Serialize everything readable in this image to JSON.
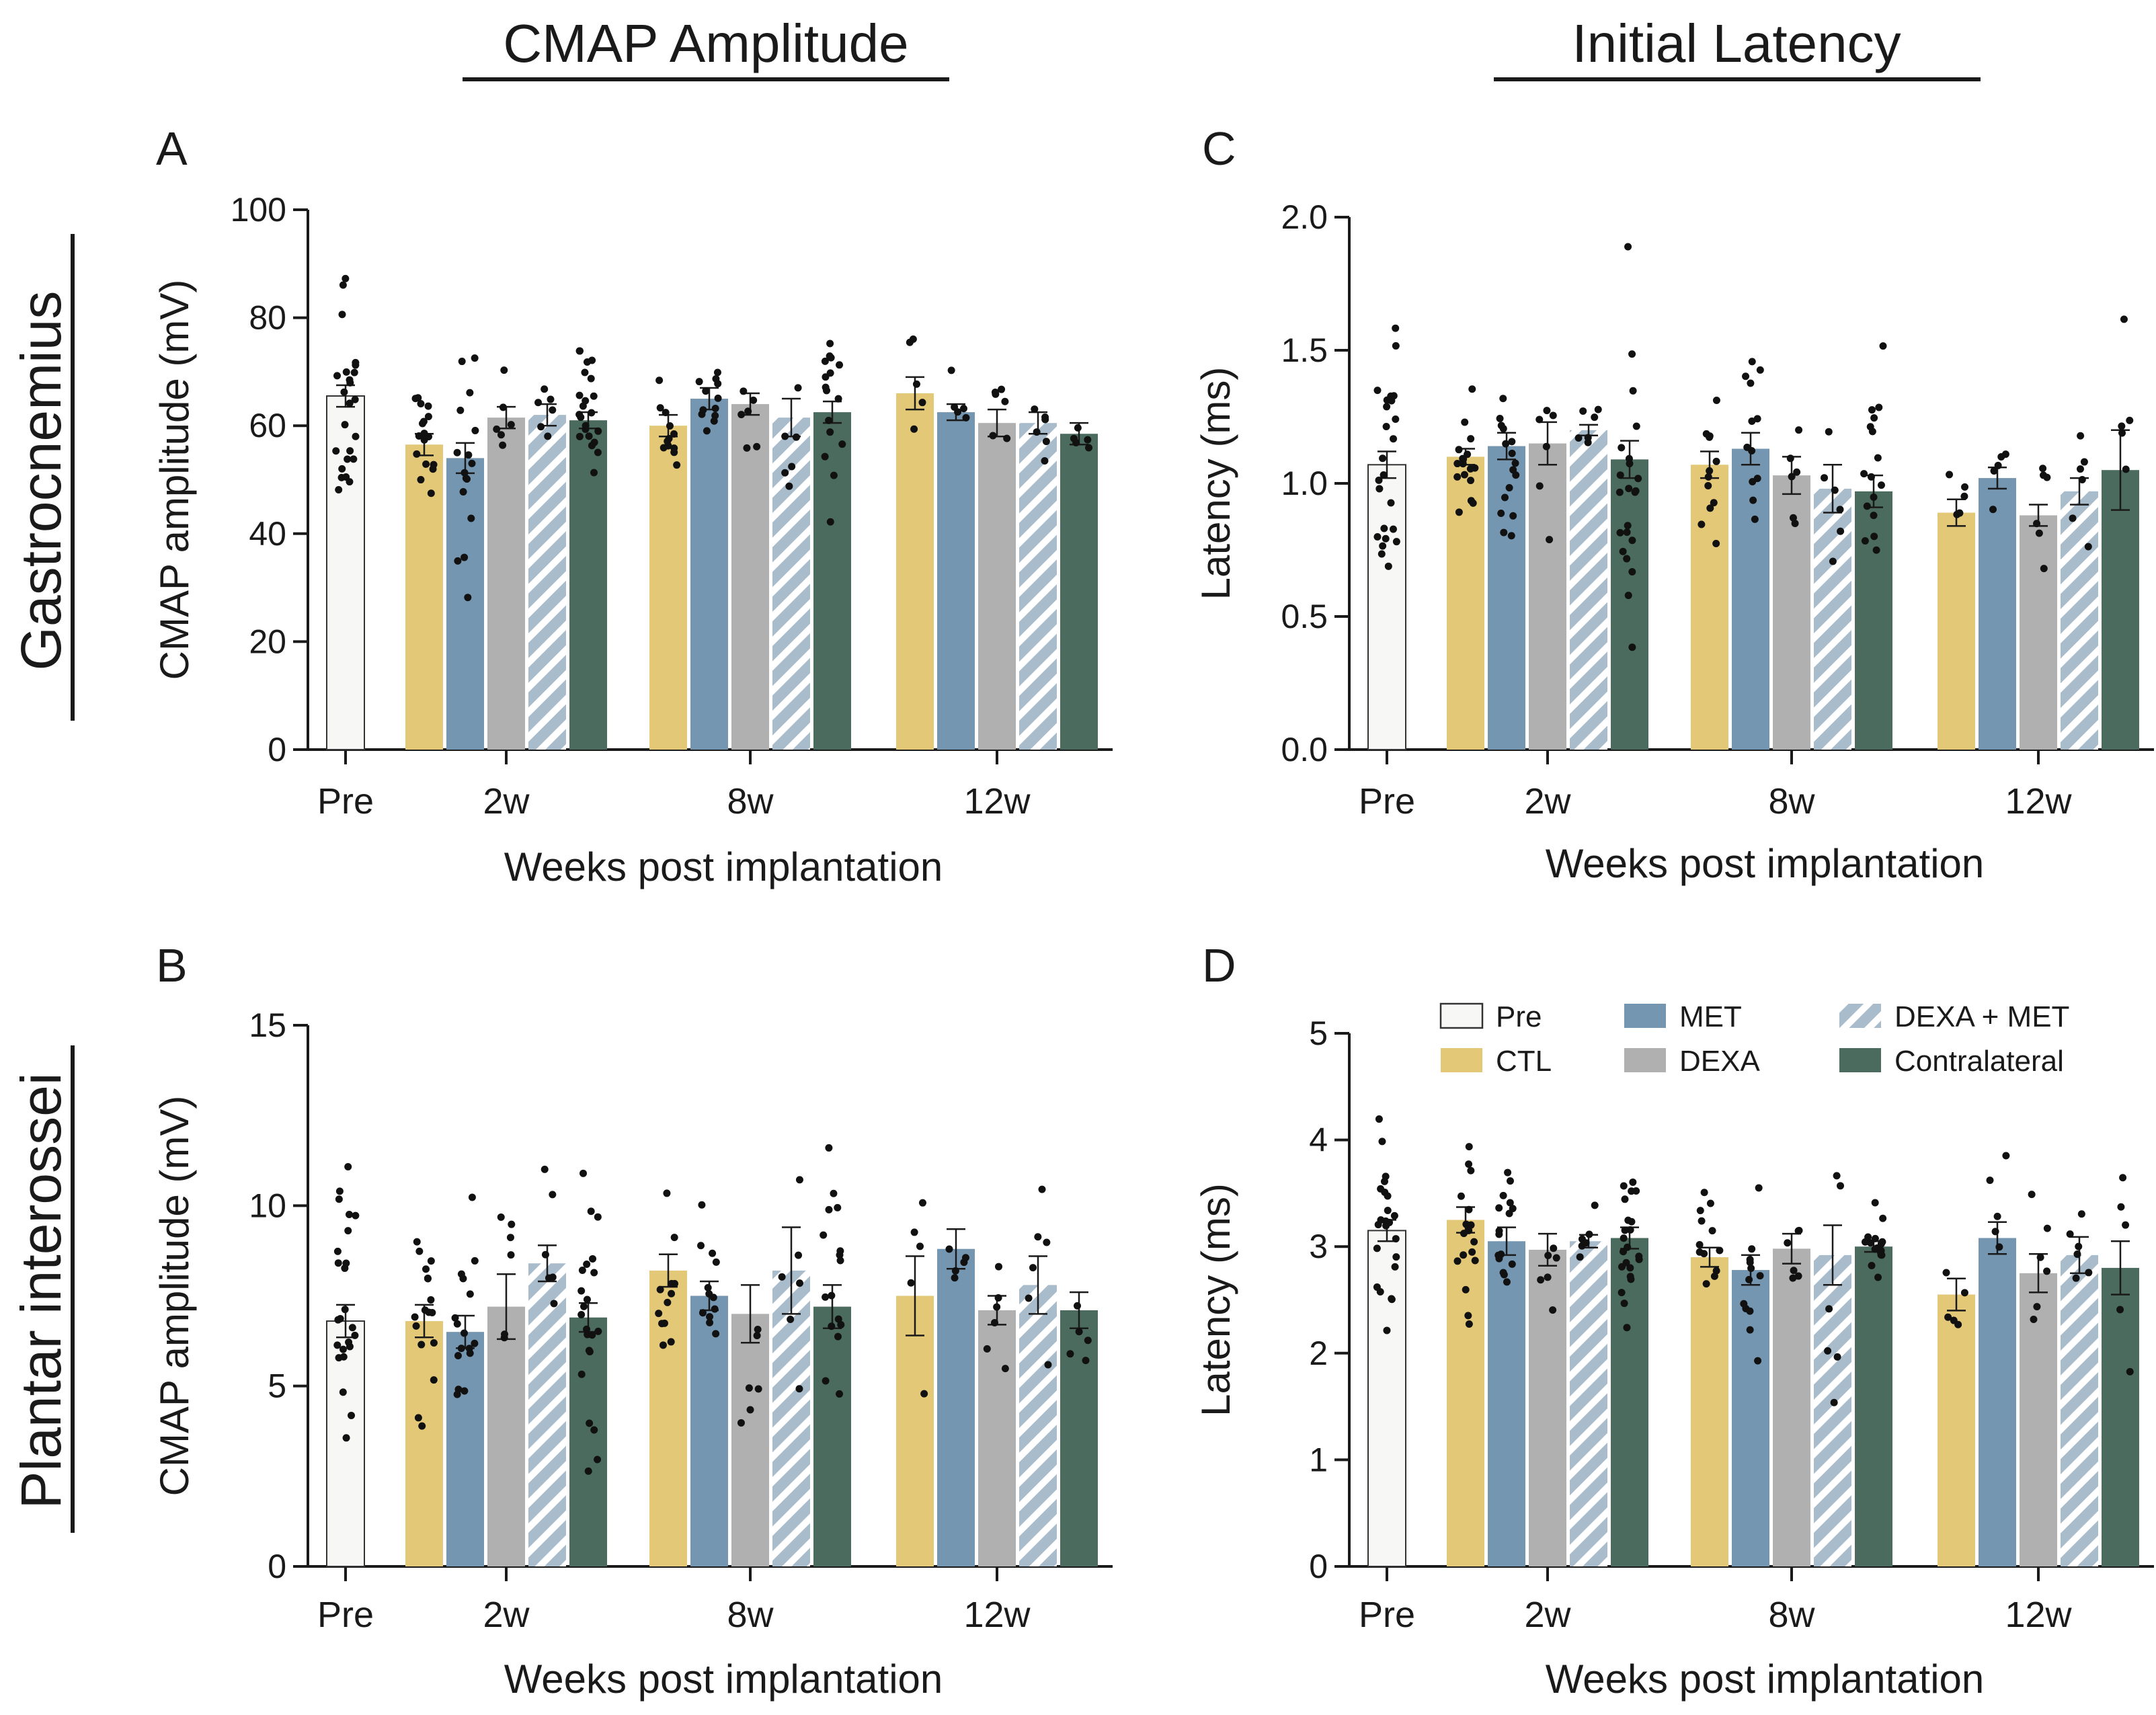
{
  "headers": {
    "col_left": "CMAP Amplitude",
    "col_right": "Initial Latency",
    "row_top": "Gastrocnemius",
    "row_bottom": "Plantar interossei"
  },
  "groups": [
    {
      "key": "pre",
      "label": "Pre",
      "color": "#f7f7f5",
      "hatch": false
    },
    {
      "key": "ctl",
      "label": "CTL",
      "color": "#e2c877",
      "hatch": false
    },
    {
      "key": "met",
      "label": "MET",
      "color": "#7596b0",
      "hatch": false
    },
    {
      "key": "dexa",
      "label": "DEXA",
      "color": "#b0b0b0",
      "hatch": false
    },
    {
      "key": "dexa_met",
      "label": "DEXA + MET",
      "color": "#a9bccc",
      "hatch": true
    },
    {
      "key": "contra",
      "label": "Contralateral",
      "color": "#4a6b5e",
      "hatch": false
    }
  ],
  "legend_order": [
    "pre",
    "met",
    "dexa_met",
    "ctl",
    "dexa",
    "contra"
  ],
  "chart_data": [
    {
      "id": "A",
      "letter": "A",
      "type": "bar",
      "title": "",
      "xlabel": "Weeks post implantation",
      "ylabel": "CMAP amplitude (mV)",
      "ylim": [
        0,
        100
      ],
      "yticks": [
        "0",
        "20",
        "40",
        "60",
        "80",
        "100"
      ],
      "categories": [
        "Pre",
        "2w",
        "8w",
        "12w"
      ],
      "series": [
        {
          "group": "pre",
          "timepoint": "Pre",
          "mean": 65.5,
          "sem": 2.0,
          "n": 24
        },
        {
          "group": "ctl",
          "timepoint": "2w",
          "mean": 56.5,
          "sem": 2.0,
          "n": 17
        },
        {
          "group": "met",
          "timepoint": "2w",
          "mean": 54,
          "sem": 2.8,
          "n": 16
        },
        {
          "group": "dexa",
          "timepoint": "2w",
          "mean": 61.5,
          "sem": 2.0,
          "n": 6
        },
        {
          "group": "dexa_met",
          "timepoint": "2w",
          "mean": 62,
          "sem": 2.0,
          "n": 6
        },
        {
          "group": "contra",
          "timepoint": "2w",
          "mean": 61,
          "sem": 1.5,
          "n": 22
        },
        {
          "group": "ctl",
          "timepoint": "8w",
          "mean": 60,
          "sem": 2.0,
          "n": 12
        },
        {
          "group": "met",
          "timepoint": "8w",
          "mean": 65,
          "sem": 2.0,
          "n": 12
        },
        {
          "group": "dexa",
          "timepoint": "8w",
          "mean": 64,
          "sem": 2.0,
          "n": 6
        },
        {
          "group": "dexa_met",
          "timepoint": "8w",
          "mean": 61.5,
          "sem": 3.5,
          "n": 6
        },
        {
          "group": "contra",
          "timepoint": "8w",
          "mean": 62.5,
          "sem": 2.0,
          "n": 16
        },
        {
          "group": "ctl",
          "timepoint": "12w",
          "mean": 66,
          "sem": 3.0,
          "n": 5
        },
        {
          "group": "met",
          "timepoint": "12w",
          "mean": 62.5,
          "sem": 1.5,
          "n": 5
        },
        {
          "group": "dexa",
          "timepoint": "12w",
          "mean": 60.5,
          "sem": 2.5,
          "n": 6
        },
        {
          "group": "dexa_met",
          "timepoint": "12w",
          "mean": 60.5,
          "sem": 2.0,
          "n": 6
        },
        {
          "group": "contra",
          "timepoint": "12w",
          "mean": 58.5,
          "sem": 2.0,
          "n": 5
        }
      ]
    },
    {
      "id": "B",
      "letter": "B",
      "type": "bar",
      "title": "",
      "xlabel": "Weeks post implantation",
      "ylabel": "CMAP amplitude (mV)",
      "ylim": [
        0,
        15
      ],
      "yticks": [
        "0",
        "5",
        "10",
        "15"
      ],
      "categories": [
        "Pre",
        "2w",
        "8w",
        "12w"
      ],
      "series": [
        {
          "group": "pre",
          "timepoint": "Pre",
          "mean": 6.8,
          "sem": 0.45,
          "n": 24
        },
        {
          "group": "ctl",
          "timepoint": "2w",
          "mean": 6.8,
          "sem": 0.45,
          "n": 17
        },
        {
          "group": "met",
          "timepoint": "2w",
          "mean": 6.5,
          "sem": 0.45,
          "n": 16
        },
        {
          "group": "dexa",
          "timepoint": "2w",
          "mean": 7.2,
          "sem": 0.9,
          "n": 6
        },
        {
          "group": "dexa_met",
          "timepoint": "2w",
          "mean": 8.4,
          "sem": 0.5,
          "n": 6
        },
        {
          "group": "contra",
          "timepoint": "2w",
          "mean": 6.9,
          "sem": 0.4,
          "n": 22
        },
        {
          "group": "ctl",
          "timepoint": "8w",
          "mean": 8.2,
          "sem": 0.45,
          "n": 12
        },
        {
          "group": "met",
          "timepoint": "8w",
          "mean": 7.5,
          "sem": 0.4,
          "n": 12
        },
        {
          "group": "dexa",
          "timepoint": "8w",
          "mean": 7.0,
          "sem": 0.8,
          "n": 6
        },
        {
          "group": "dexa_met",
          "timepoint": "8w",
          "mean": 8.2,
          "sem": 1.2,
          "n": 6
        },
        {
          "group": "contra",
          "timepoint": "8w",
          "mean": 7.2,
          "sem": 0.6,
          "n": 16
        },
        {
          "group": "ctl",
          "timepoint": "12w",
          "mean": 7.5,
          "sem": 1.1,
          "n": 5
        },
        {
          "group": "met",
          "timepoint": "12w",
          "mean": 8.8,
          "sem": 0.55,
          "n": 5
        },
        {
          "group": "dexa",
          "timepoint": "12w",
          "mean": 7.1,
          "sem": 0.4,
          "n": 6
        },
        {
          "group": "dexa_met",
          "timepoint": "12w",
          "mean": 7.8,
          "sem": 0.8,
          "n": 6
        },
        {
          "group": "contra",
          "timepoint": "12w",
          "mean": 7.1,
          "sem": 0.5,
          "n": 5
        }
      ]
    },
    {
      "id": "C",
      "letter": "C",
      "type": "bar",
      "title": "",
      "xlabel": "Weeks post implantation",
      "ylabel": "Latency (ms)",
      "ylim": [
        0,
        2.0
      ],
      "yticks": [
        "0.0",
        "0.5",
        "1.0",
        "1.5",
        "2.0"
      ],
      "categories": [
        "Pre",
        "2w",
        "8w",
        "12w"
      ],
      "series": [
        {
          "group": "pre",
          "timepoint": "Pre",
          "mean": 1.07,
          "sem": 0.05,
          "n": 24
        },
        {
          "group": "ctl",
          "timepoint": "2w",
          "mean": 1.1,
          "sem": 0.03,
          "n": 17
        },
        {
          "group": "met",
          "timepoint": "2w",
          "mean": 1.14,
          "sem": 0.05,
          "n": 16
        },
        {
          "group": "dexa",
          "timepoint": "2w",
          "mean": 1.15,
          "sem": 0.08,
          "n": 6
        },
        {
          "group": "dexa_met",
          "timepoint": "2w",
          "mean": 1.2,
          "sem": 0.02,
          "n": 6
        },
        {
          "group": "contra",
          "timepoint": "2w",
          "mean": 1.09,
          "sem": 0.07,
          "n": 22
        },
        {
          "group": "ctl",
          "timepoint": "8w",
          "mean": 1.07,
          "sem": 0.05,
          "n": 12
        },
        {
          "group": "met",
          "timepoint": "8w",
          "mean": 1.13,
          "sem": 0.06,
          "n": 12
        },
        {
          "group": "dexa",
          "timepoint": "8w",
          "mean": 1.03,
          "sem": 0.07,
          "n": 6
        },
        {
          "group": "dexa_met",
          "timepoint": "8w",
          "mean": 0.98,
          "sem": 0.09,
          "n": 6
        },
        {
          "group": "contra",
          "timepoint": "8w",
          "mean": 0.97,
          "sem": 0.06,
          "n": 16
        },
        {
          "group": "ctl",
          "timepoint": "12w",
          "mean": 0.89,
          "sem": 0.05,
          "n": 5
        },
        {
          "group": "met",
          "timepoint": "12w",
          "mean": 1.02,
          "sem": 0.04,
          "n": 5
        },
        {
          "group": "dexa",
          "timepoint": "12w",
          "mean": 0.88,
          "sem": 0.04,
          "n": 6
        },
        {
          "group": "dexa_met",
          "timepoint": "12w",
          "mean": 0.97,
          "sem": 0.05,
          "n": 6
        },
        {
          "group": "contra",
          "timepoint": "12w",
          "mean": 1.05,
          "sem": 0.15,
          "n": 5
        }
      ]
    },
    {
      "id": "D",
      "letter": "D",
      "type": "bar",
      "title": "",
      "xlabel": "Weeks post implantation",
      "ylabel": "Latency (ms)",
      "ylim": [
        0,
        5
      ],
      "yticks": [
        "0",
        "1",
        "2",
        "3",
        "4",
        "5"
      ],
      "categories": [
        "Pre",
        "2w",
        "8w",
        "12w"
      ],
      "series": [
        {
          "group": "pre",
          "timepoint": "Pre",
          "mean": 3.15,
          "sem": 0.1,
          "n": 24
        },
        {
          "group": "ctl",
          "timepoint": "2w",
          "mean": 3.25,
          "sem": 0.12,
          "n": 17
        },
        {
          "group": "met",
          "timepoint": "2w",
          "mean": 3.05,
          "sem": 0.13,
          "n": 16
        },
        {
          "group": "dexa",
          "timepoint": "2w",
          "mean": 2.97,
          "sem": 0.15,
          "n": 6
        },
        {
          "group": "dexa_met",
          "timepoint": "2w",
          "mean": 3.05,
          "sem": 0.06,
          "n": 6
        },
        {
          "group": "contra",
          "timepoint": "2w",
          "mean": 3.08,
          "sem": 0.1,
          "n": 22
        },
        {
          "group": "ctl",
          "timepoint": "8w",
          "mean": 2.9,
          "sem": 0.09,
          "n": 12
        },
        {
          "group": "met",
          "timepoint": "8w",
          "mean": 2.78,
          "sem": 0.14,
          "n": 12
        },
        {
          "group": "dexa",
          "timepoint": "8w",
          "mean": 2.98,
          "sem": 0.14,
          "n": 6
        },
        {
          "group": "dexa_met",
          "timepoint": "8w",
          "mean": 2.92,
          "sem": 0.28,
          "n": 6
        },
        {
          "group": "contra",
          "timepoint": "8w",
          "mean": 3.0,
          "sem": 0.05,
          "n": 16
        },
        {
          "group": "ctl",
          "timepoint": "12w",
          "mean": 2.55,
          "sem": 0.15,
          "n": 5
        },
        {
          "group": "met",
          "timepoint": "12w",
          "mean": 3.08,
          "sem": 0.15,
          "n": 5
        },
        {
          "group": "dexa",
          "timepoint": "12w",
          "mean": 2.75,
          "sem": 0.18,
          "n": 6
        },
        {
          "group": "dexa_met",
          "timepoint": "12w",
          "mean": 2.92,
          "sem": 0.17,
          "n": 6
        },
        {
          "group": "contra",
          "timepoint": "12w",
          "mean": 2.8,
          "sem": 0.25,
          "n": 5
        }
      ]
    }
  ]
}
